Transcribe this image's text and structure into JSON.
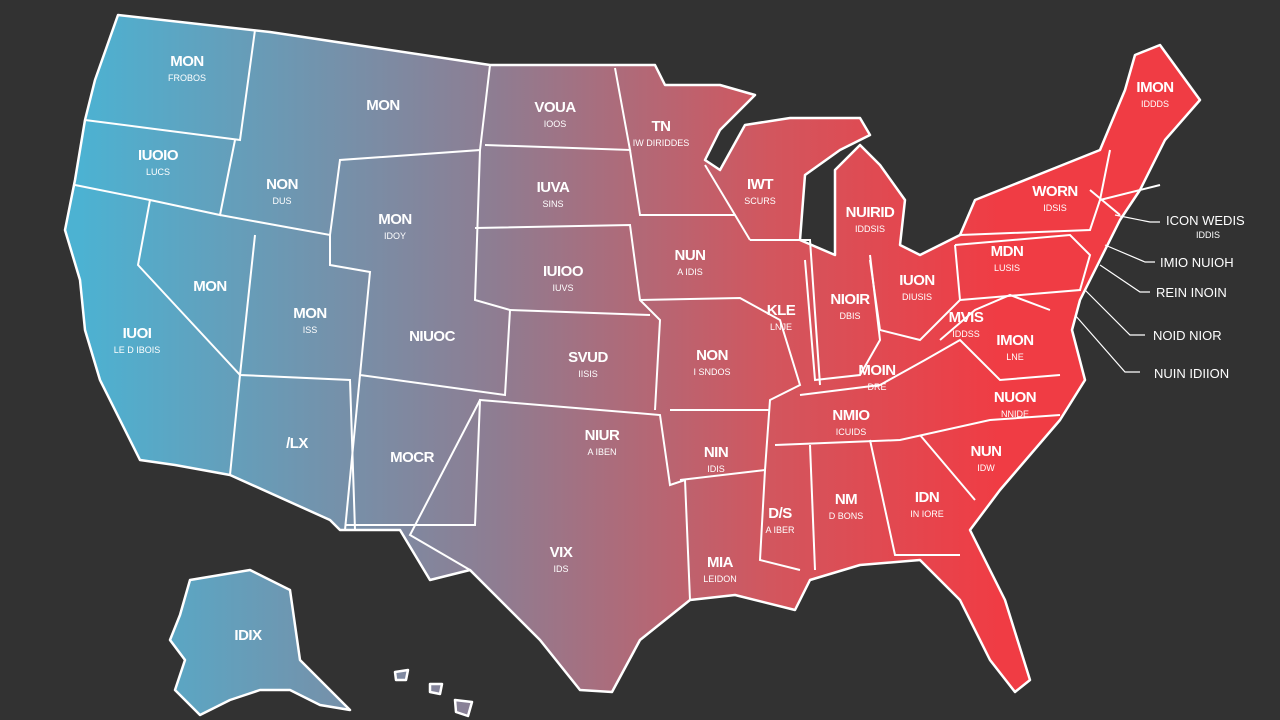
{
  "states": [
    {
      "label": "MON",
      "sublabel": "FROBOS"
    },
    {
      "label": "IUOIO",
      "sublabel": "LUCS"
    },
    {
      "label": "IUOI",
      "sublabel": "LE D IBOIS"
    },
    {
      "label": "NON",
      "sublabel": "DUS"
    },
    {
      "label": "MON"
    },
    {
      "label": "MON"
    },
    {
      "label": "MON",
      "sublabel": "IDOY"
    },
    {
      "label": "MON",
      "sublabel": "ISS"
    },
    {
      "label": "NIUOC"
    },
    {
      "label": "/LX"
    },
    {
      "label": "MOCR"
    },
    {
      "label": "VOUA",
      "sublabel": "IOOS"
    },
    {
      "label": "IUVA",
      "sublabel": "SINS"
    },
    {
      "label": "IUIOO",
      "sublabel": "IUVS"
    },
    {
      "label": "SVUD",
      "sublabel": "IISIS"
    },
    {
      "label": "NIUR",
      "sublabel": "A IBEN"
    },
    {
      "label": "VIX",
      "sublabel": "IDS"
    },
    {
      "label": "TN",
      "sublabel": "IW DIRIDDES"
    },
    {
      "label": "NUN",
      "sublabel": "A IDIS"
    },
    {
      "label": "NON",
      "sublabel": "I SNDOS"
    },
    {
      "label": "NIN",
      "sublabel": "IDIS"
    },
    {
      "label": "MIA",
      "sublabel": "LEIDON"
    },
    {
      "label": "IWT",
      "sublabel": "SCURS"
    },
    {
      "label": "KLE",
      "sublabel": "LNJE"
    },
    {
      "label": "NUIRID",
      "sublabel": "IDDSIS"
    },
    {
      "label": "NIOIR",
      "sublabel": "DBIS"
    },
    {
      "label": "IUON",
      "sublabel": "DIUSIS"
    },
    {
      "label": "MOIN",
      "sublabel": "DRE"
    },
    {
      "label": "NMIO",
      "sublabel": "ICUIDS"
    },
    {
      "label": "D/S",
      "sublabel": "A IBER"
    },
    {
      "label": "NM",
      "sublabel": "D BONS"
    },
    {
      "label": "IDN",
      "sublabel": "IN IORE"
    },
    {
      "label": "WORN",
      "sublabel": "IDSIS"
    },
    {
      "label": "MDN",
      "sublabel": "LUSIS"
    },
    {
      "label": "IMON",
      "sublabel": "IDDDS"
    },
    {
      "label": "MVIS",
      "sublabel": "IDDSS"
    },
    {
      "label": "IMON",
      "sublabel": "LNE"
    },
    {
      "label": "NUON",
      "sublabel": "NNIDE"
    },
    {
      "label": "NUN",
      "sublabel": "IDW"
    },
    {
      "label": "IDIX"
    }
  ],
  "callouts": [
    {
      "label": "ICON WEDIS",
      "sublabel": "IDDIS"
    },
    {
      "label": "IMIO NUIOH"
    },
    {
      "label": "REIN INOIN"
    },
    {
      "label": "NOID NIOR"
    },
    {
      "label": "NUIN IDIION"
    }
  ]
}
